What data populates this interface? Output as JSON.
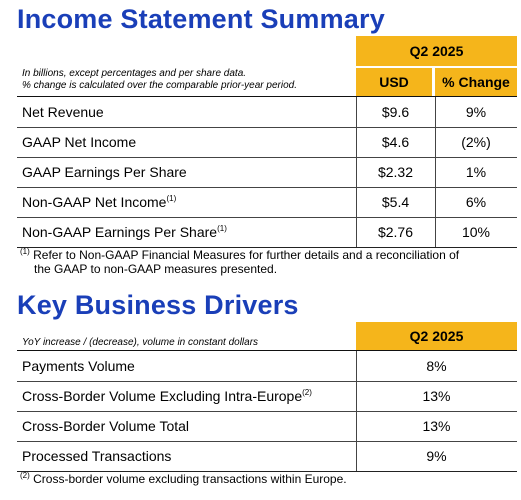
{
  "income": {
    "title": "Income Statement Summary",
    "period": "Q2 2025",
    "note_line1": "In billions, except percentages and per share data.",
    "note_line2": "% change is calculated over the comparable prior-year period.",
    "col_usd": "USD",
    "col_change": "% Change",
    "rows": [
      {
        "label": "Net Revenue",
        "sup": "",
        "usd": "$9.6",
        "change": "9%"
      },
      {
        "label": "GAAP Net Income",
        "sup": "",
        "usd": "$4.6",
        "change": "(2%)"
      },
      {
        "label": "GAAP Earnings Per Share",
        "sup": "",
        "usd": "$2.32",
        "change": "1%"
      },
      {
        "label": "Non-GAAP Net Income",
        "sup": "(1)",
        "usd": "$5.4",
        "change": "6%"
      },
      {
        "label": "Non-GAAP Earnings Per Share",
        "sup": "(1)",
        "usd": "$2.76",
        "change": "10%"
      }
    ],
    "footnote_sup": "(1)",
    "footnote_line1": "Refer to Non-GAAP Financial Measures for further details and a reconciliation of",
    "footnote_line2": "the GAAP to non-GAAP measures presented."
  },
  "drivers": {
    "title": "Key Business Drivers",
    "period": "Q2 2025",
    "note": "YoY increase / (decrease), volume in constant dollars",
    "rows": [
      {
        "label": "Payments Volume",
        "sup": "",
        "value": "8%"
      },
      {
        "label": "Cross-Border Volume Excluding Intra-Europe",
        "sup": "(2)",
        "value": "13%"
      },
      {
        "label": "Cross-Border Volume Total",
        "sup": "",
        "value": "13%"
      },
      {
        "label": "Processed Transactions",
        "sup": "",
        "value": "9%"
      }
    ],
    "footnote_sup": "(2)",
    "footnote_text": "Cross-border volume excluding transactions within Europe."
  },
  "colors": {
    "title_blue": "#1a3fb8",
    "header_yellow": "#f5b51b"
  }
}
